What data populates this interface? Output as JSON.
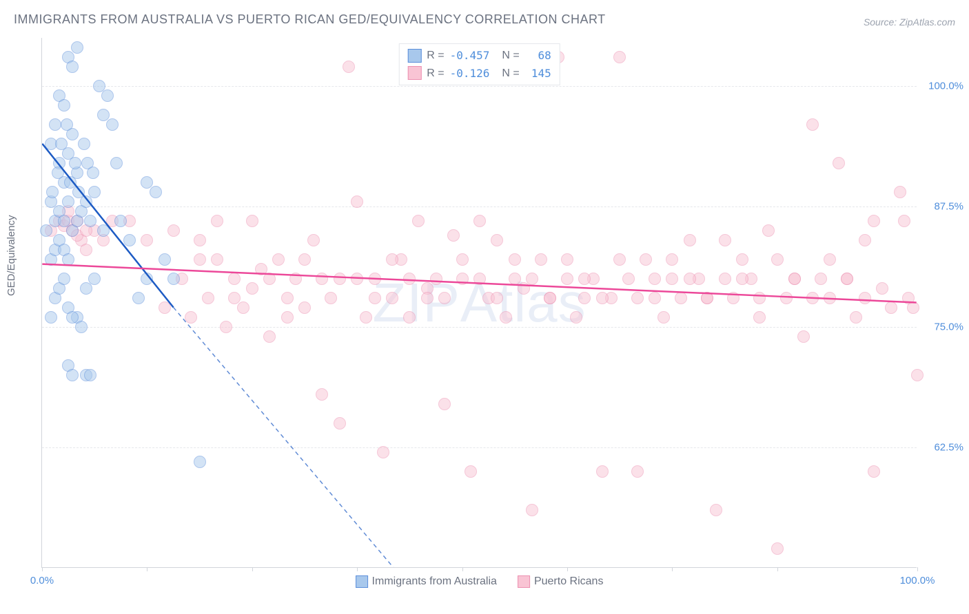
{
  "title": "IMMIGRANTS FROM AUSTRALIA VS PUERTO RICAN GED/EQUIVALENCY CORRELATION CHART",
  "source": "Source: ZipAtlas.com",
  "ylabel": "GED/Equivalency",
  "watermark_zip": "ZIP",
  "watermark_atlas": "Atlas",
  "chart": {
    "type": "scatter",
    "xlim": [
      0,
      100
    ],
    "ylim": [
      50,
      105
    ],
    "yticks": [
      {
        "v": 62.5,
        "label": "62.5%"
      },
      {
        "v": 75.0,
        "label": "75.0%"
      },
      {
        "v": 87.5,
        "label": "87.5%"
      },
      {
        "v": 100.0,
        "label": "100.0%"
      }
    ],
    "xticks": [
      {
        "v": 0,
        "label": "0.0%"
      },
      {
        "v": 12,
        "label": ""
      },
      {
        "v": 24,
        "label": ""
      },
      {
        "v": 36,
        "label": ""
      },
      {
        "v": 48,
        "label": ""
      },
      {
        "v": 60,
        "label": ""
      },
      {
        "v": 72,
        "label": ""
      },
      {
        "v": 84,
        "label": ""
      },
      {
        "v": 100,
        "label": "100.0%"
      }
    ],
    "grid_color": "#e5e7eb",
    "background_color": "#ffffff",
    "marker_radius": 9,
    "marker_opacity": 0.5,
    "series": [
      {
        "name": "Immigrants from Australia",
        "fill": "#a8c8ec",
        "stroke": "#5b8edb",
        "R": "-0.457",
        "N": "68",
        "trend": {
          "x1": 0,
          "y1": 94,
          "x2": 15,
          "y2": 77,
          "solid_until_x": 15,
          "dashed_extend_x": 42,
          "dashed_extend_y": 48,
          "color": "#1d5bc4",
          "width": 2.5
        },
        "points": [
          [
            1,
            94
          ],
          [
            1.5,
            96
          ],
          [
            2,
            99
          ],
          [
            2.5,
            98
          ],
          [
            3,
            103
          ],
          [
            3.5,
            102
          ],
          [
            4,
            104
          ],
          [
            2,
            92
          ],
          [
            2.5,
            90
          ],
          [
            3,
            93
          ],
          [
            3.5,
            95
          ],
          [
            4,
            91
          ],
          [
            1,
            88
          ],
          [
            1.5,
            86
          ],
          [
            2,
            87
          ],
          [
            2.5,
            86
          ],
          [
            3,
            88
          ],
          [
            3.5,
            85
          ],
          [
            4,
            86
          ],
          [
            4.5,
            87
          ],
          [
            5,
            88
          ],
          [
            5.5,
            86
          ],
          [
            6,
            89
          ],
          [
            7,
            97
          ],
          [
            6.5,
            100
          ],
          [
            7.5,
            99
          ],
          [
            8,
            96
          ],
          [
            1,
            82
          ],
          [
            1.5,
            83
          ],
          [
            2,
            84
          ],
          [
            2.5,
            83
          ],
          [
            3,
            82
          ],
          [
            0.5,
            85
          ],
          [
            1.2,
            89
          ],
          [
            1.8,
            91
          ],
          [
            2.2,
            94
          ],
          [
            2.8,
            96
          ],
          [
            3.2,
            90
          ],
          [
            3.8,
            92
          ],
          [
            4.2,
            89
          ],
          [
            4.8,
            94
          ],
          [
            5.2,
            92
          ],
          [
            5.8,
            91
          ],
          [
            8.5,
            92
          ],
          [
            9,
            86
          ],
          [
            10,
            84
          ],
          [
            11,
            78
          ],
          [
            12,
            90
          ],
          [
            13,
            89
          ],
          [
            5,
            79
          ],
          [
            6,
            80
          ],
          [
            7,
            85
          ],
          [
            4,
            76
          ],
          [
            4.5,
            75
          ],
          [
            3,
            71
          ],
          [
            3.5,
            70
          ],
          [
            5,
            70
          ],
          [
            5.5,
            70
          ],
          [
            1.5,
            78
          ],
          [
            2,
            79
          ],
          [
            2.5,
            80
          ],
          [
            3,
            77
          ],
          [
            3.5,
            76
          ],
          [
            1,
            76
          ],
          [
            18,
            61
          ],
          [
            12,
            80
          ],
          [
            14,
            82
          ],
          [
            15,
            80
          ]
        ]
      },
      {
        "name": "Puerto Ricans",
        "fill": "#f9c4d4",
        "stroke": "#ec8fb0",
        "R": "-0.126",
        "N": "145",
        "trend": {
          "x1": 0,
          "y1": 81.5,
          "x2": 100,
          "y2": 77.5,
          "color": "#ec4899",
          "width": 2.5
        },
        "points": [
          [
            1,
            85
          ],
          [
            2,
            86
          ],
          [
            2.5,
            85.5
          ],
          [
            3,
            86
          ],
          [
            3.5,
            85
          ],
          [
            4,
            86
          ],
          [
            4.5,
            84
          ],
          [
            5,
            83
          ],
          [
            6,
            85
          ],
          [
            7,
            84
          ],
          [
            8,
            86
          ],
          [
            3,
            87
          ],
          [
            4,
            84.5
          ],
          [
            5,
            85
          ],
          [
            10,
            86
          ],
          [
            12,
            84
          ],
          [
            14,
            77
          ],
          [
            15,
            85
          ],
          [
            16,
            80
          ],
          [
            17,
            76
          ],
          [
            18,
            82
          ],
          [
            19,
            78
          ],
          [
            20,
            86
          ],
          [
            21,
            75
          ],
          [
            22,
            80
          ],
          [
            23,
            77
          ],
          [
            24,
            79
          ],
          [
            25,
            81
          ],
          [
            26,
            74
          ],
          [
            27,
            82
          ],
          [
            28,
            76
          ],
          [
            29,
            80
          ],
          [
            30,
            77
          ],
          [
            31,
            84
          ],
          [
            32,
            68
          ],
          [
            33,
            78
          ],
          [
            34,
            80
          ],
          [
            35,
            102
          ],
          [
            36,
            88
          ],
          [
            37,
            76
          ],
          [
            38,
            80
          ],
          [
            39,
            62
          ],
          [
            40,
            78
          ],
          [
            41,
            82
          ],
          [
            42,
            76
          ],
          [
            43,
            86
          ],
          [
            44,
            79
          ],
          [
            45,
            80
          ],
          [
            46,
            78
          ],
          [
            47,
            84.5
          ],
          [
            48,
            80
          ],
          [
            49,
            60
          ],
          [
            50,
            80
          ],
          [
            51,
            78
          ],
          [
            52,
            84
          ],
          [
            53,
            76
          ],
          [
            54,
            80
          ],
          [
            55,
            79
          ],
          [
            56,
            56
          ],
          [
            57,
            82
          ],
          [
            58,
            78
          ],
          [
            59,
            103
          ],
          [
            60,
            80
          ],
          [
            61,
            76
          ],
          [
            62,
            78
          ],
          [
            63,
            80
          ],
          [
            64,
            60
          ],
          [
            65,
            78
          ],
          [
            66,
            103
          ],
          [
            67,
            80
          ],
          [
            68,
            78
          ],
          [
            69,
            82
          ],
          [
            70,
            80
          ],
          [
            71,
            76
          ],
          [
            72,
            80
          ],
          [
            73,
            78
          ],
          [
            74,
            84
          ],
          [
            75,
            80
          ],
          [
            76,
            78
          ],
          [
            77,
            56
          ],
          [
            78,
            80
          ],
          [
            79,
            78
          ],
          [
            80,
            82
          ],
          [
            81,
            80
          ],
          [
            82,
            76
          ],
          [
            83,
            85
          ],
          [
            84,
            52
          ],
          [
            85,
            78
          ],
          [
            86,
            80
          ],
          [
            87,
            74
          ],
          [
            88,
            96
          ],
          [
            89,
            80
          ],
          [
            90,
            78
          ],
          [
            91,
            92
          ],
          [
            92,
            80
          ],
          [
            93,
            76
          ],
          [
            94,
            84
          ],
          [
            95,
            86
          ],
          [
            96,
            79
          ],
          [
            97,
            77
          ],
          [
            98,
            89
          ],
          [
            98.5,
            86
          ],
          [
            99,
            78
          ],
          [
            99.5,
            77
          ],
          [
            100,
            70
          ],
          [
            95,
            60
          ],
          [
            18,
            84
          ],
          [
            20,
            82
          ],
          [
            22,
            78
          ],
          [
            24,
            86
          ],
          [
            26,
            80
          ],
          [
            28,
            78
          ],
          [
            30,
            82
          ],
          [
            32,
            80
          ],
          [
            34,
            65
          ],
          [
            36,
            80
          ],
          [
            38,
            78
          ],
          [
            40,
            82
          ],
          [
            42,
            80
          ],
          [
            44,
            78
          ],
          [
            46,
            67
          ],
          [
            48,
            82
          ],
          [
            50,
            86
          ],
          [
            52,
            78
          ],
          [
            54,
            82
          ],
          [
            56,
            80
          ],
          [
            58,
            78
          ],
          [
            60,
            82
          ],
          [
            62,
            80
          ],
          [
            64,
            78
          ],
          [
            66,
            82
          ],
          [
            68,
            60
          ],
          [
            70,
            78
          ],
          [
            72,
            82
          ],
          [
            74,
            80
          ],
          [
            76,
            78
          ],
          [
            78,
            84
          ],
          [
            80,
            80
          ],
          [
            82,
            78
          ],
          [
            84,
            82
          ],
          [
            86,
            80
          ],
          [
            88,
            78
          ],
          [
            90,
            82
          ],
          [
            92,
            80
          ],
          [
            94,
            78
          ]
        ]
      }
    ]
  },
  "legend_top_labels": {
    "R": "R =",
    "N": "N ="
  },
  "legend_bottom": [
    {
      "name": "Immigrants from Australia",
      "fill": "#a8c8ec",
      "stroke": "#5b8edb"
    },
    {
      "name": "Puerto Ricans",
      "fill": "#f9c4d4",
      "stroke": "#ec8fb0"
    }
  ],
  "colors": {
    "title": "#6b7280",
    "axis_label": "#4f8edb",
    "trend_blue": "#1d5bc4",
    "trend_pink": "#ec4899"
  }
}
